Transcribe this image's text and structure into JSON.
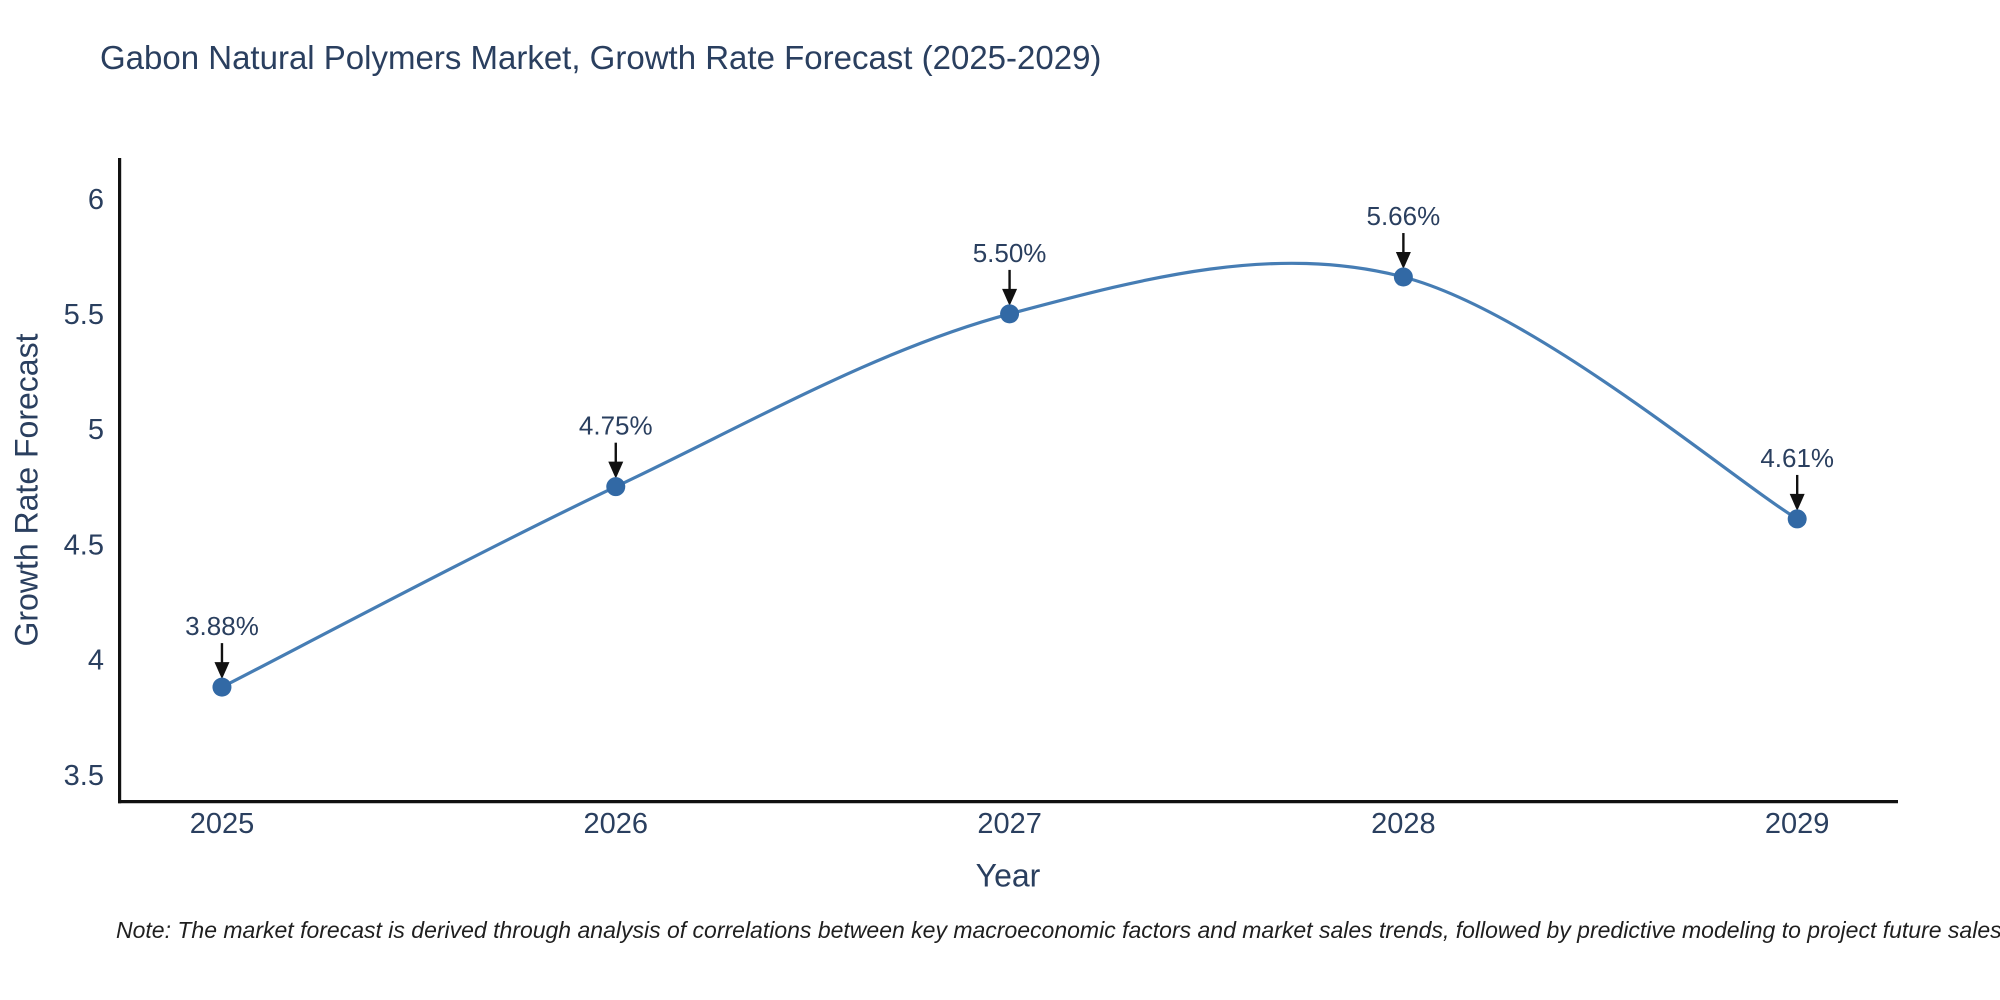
{
  "title": "Gabon Natural Polymers Market, Growth Rate Forecast (2025-2029)",
  "note": "Note: The market forecast is derived through analysis of correlations between key macroeconomic factors and market sales trends, followed by predictive modeling to project future sales",
  "chart_data": {
    "type": "line",
    "title": "Gabon Natural Polymers Market, Growth Rate Forecast (2025-2029)",
    "xlabel": "Year",
    "ylabel": "Growth Rate Forecast",
    "x": [
      2025,
      2026,
      2027,
      2028,
      2029
    ],
    "values": [
      3.88,
      4.75,
      5.5,
      5.66,
      4.61
    ],
    "point_labels": [
      "3.88%",
      "4.75%",
      "5.50%",
      "5.66%",
      "4.61%"
    ],
    "xtick_labels": [
      "2025",
      "2026",
      "2027",
      "2028",
      "2029"
    ],
    "yticks": [
      3.5,
      4,
      4.5,
      5,
      5.5,
      6
    ],
    "ytick_labels": [
      "3.5",
      "4",
      "4.5",
      "5",
      "5.5",
      "6"
    ],
    "xlim": [
      2024.736,
      2029.256
    ],
    "ylim": [
      3.39,
      6.168
    ],
    "grid": false,
    "legend": "none",
    "line_shape": "spline",
    "colors": {
      "line": "#467db4",
      "marker": "#3269a5",
      "axis": "#111111",
      "arrow": "#111111",
      "text": "#2a3f5f"
    }
  }
}
